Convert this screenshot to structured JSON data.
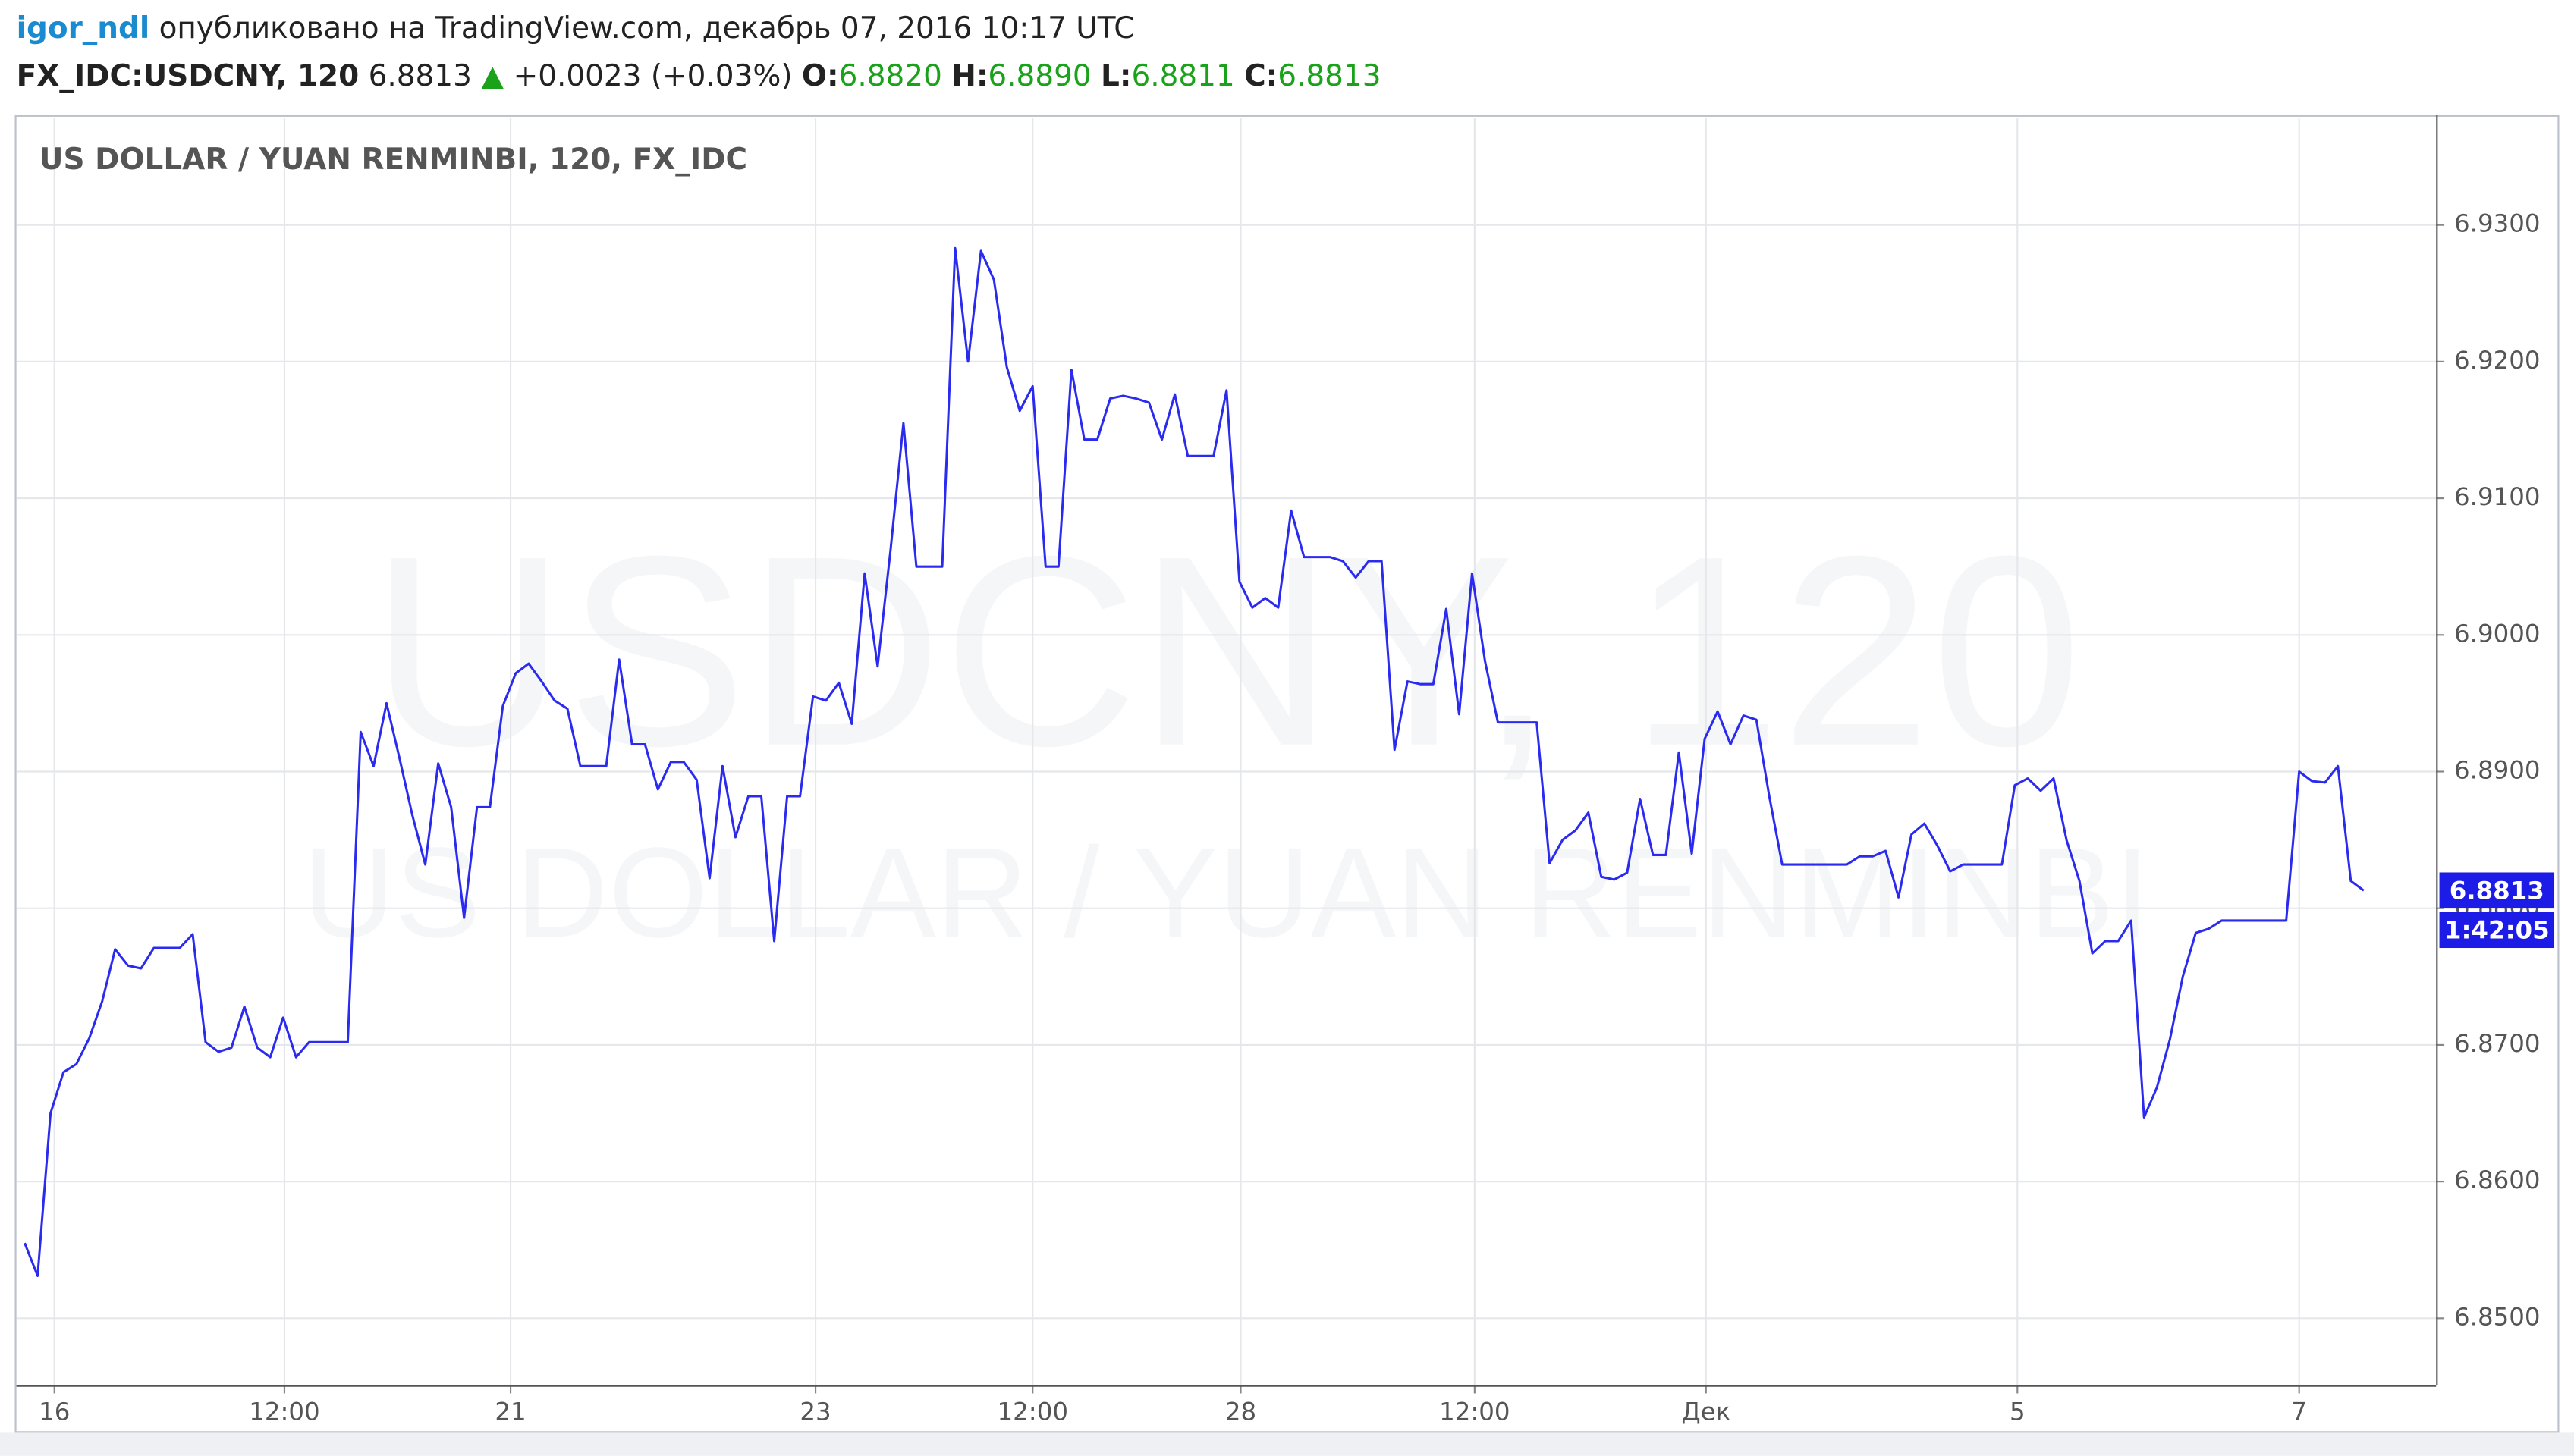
{
  "header": {
    "author": "igor_ndl",
    "published": "опубликовано на TradingView.com, декабрь 07, 2016 10:17 UTC",
    "symbol": "FX_IDC:USDCNY, 120",
    "last": "6.8813",
    "change_arrow": "▲",
    "change": "+0.0023 (+0.03%)",
    "open_label": "O:",
    "open": "6.8820",
    "high_label": "H:",
    "high": "6.8890",
    "low_label": "L:",
    "low": "6.8811",
    "close_label": "C:",
    "close": "6.8813"
  },
  "chart_data": {
    "type": "line",
    "title": "US DOLLAR / YUAN RENMINBI, 120, FX_IDC",
    "watermark": "USDCNY, 120",
    "watermark_subtitle": "US DOLLAR / YUAN RENMINBI",
    "color": "#2b2bf0",
    "grid": true,
    "values": [
      6.8555,
      6.8531,
      6.865,
      6.868,
      6.8686,
      6.8705,
      6.8732,
      6.877,
      6.8758,
      6.8756,
      6.8771,
      6.8771,
      6.8771,
      6.8781,
      6.8702,
      6.8695,
      6.8698,
      6.8728,
      6.8698,
      6.8691,
      6.872,
      6.8691,
      6.8702,
      6.8702,
      6.8702,
      6.8702,
      6.8929,
      6.8904,
      6.895,
      6.891,
      6.8868,
      6.8832,
      6.8906,
      6.8874,
      6.8793,
      6.8874,
      6.8874,
      6.8948,
      6.8972,
      6.8979,
      6.8966,
      6.8952,
      6.8946,
      6.8904,
      6.8904,
      6.8904,
      6.8982,
      6.892,
      6.892,
      6.8887,
      6.8907,
      6.8907,
      6.8894,
      6.8822,
      6.8904,
      6.8852,
      6.8882,
      6.8882,
      6.8776,
      6.8882,
      6.8882,
      6.8955,
      6.8952,
      6.8965,
      6.8935,
      6.9045,
      6.8977,
      6.9062,
      6.9155,
      6.905,
      6.905,
      6.905,
      6.9283,
      6.92,
      6.9281,
      6.926,
      6.9196,
      6.9164,
      6.9182,
      6.905,
      6.905,
      6.9194,
      6.9143,
      6.9143,
      6.9173,
      6.9175,
      6.9173,
      6.917,
      6.9143,
      6.9176,
      6.9131,
      6.9131,
      6.9131,
      6.9179,
      6.9039,
      6.902,
      6.9027,
      6.902,
      6.9091,
      6.9057,
      6.9057,
      6.9057,
      6.9054,
      6.9042,
      6.9054,
      6.9054,
      6.8916,
      6.8966,
      6.8964,
      6.8964,
      6.9019,
      6.8942,
      6.9045,
      6.8981,
      6.8936,
      6.8936,
      6.8936,
      6.8936,
      6.8833,
      6.885,
      6.8857,
      6.887,
      6.8823,
      6.8821,
      6.8826,
      6.888,
      6.8839,
      6.8839,
      6.8914,
      6.884,
      6.8924,
      6.8944,
      6.892,
      6.8941,
      6.8938,
      6.8882,
      6.8832,
      6.8832,
      6.8832,
      6.8832,
      6.8832,
      6.8832,
      6.8838,
      6.8838,
      6.8842,
      6.8808,
      6.8854,
      6.8862,
      6.8846,
      6.8827,
      6.8832,
      6.8832,
      6.8832,
      6.8832,
      6.889,
      6.8895,
      6.8886,
      6.8895,
      6.885,
      6.882,
      6.8767,
      6.8776,
      6.8776,
      6.8791,
      6.8647,
      6.8669,
      6.8704,
      6.875,
      6.8782,
      6.8785,
      6.8791,
      6.8791,
      6.8791,
      6.8791,
      6.8791,
      6.8791,
      6.89,
      6.8893,
      6.8892,
      6.8904,
      6.882,
      6.8813
    ],
    "xlim": [
      -0.64,
      186.6
    ],
    "xticks": [
      {
        "value": 2.3,
        "label": "16"
      },
      {
        "value": 20.1,
        "label": "12:00"
      },
      {
        "value": 37.6,
        "label": "21"
      },
      {
        "value": 61.2,
        "label": "23"
      },
      {
        "value": 78.0,
        "label": "12:00"
      },
      {
        "value": 94.1,
        "label": "28"
      },
      {
        "value": 112.2,
        "label": "12:00"
      },
      {
        "value": 130.1,
        "label": "Дек"
      },
      {
        "value": 154.2,
        "label": "5"
      },
      {
        "value": 176.0,
        "label": "7"
      }
    ],
    "ylim": [
      6.8451,
      6.9378
    ],
    "yticks": [
      {
        "value": 6.85,
        "label": "6.8500"
      },
      {
        "value": 6.86,
        "label": "6.8600"
      },
      {
        "value": 6.87,
        "label": "6.8700"
      },
      {
        "value": 6.88,
        "label": "6.8800"
      },
      {
        "value": 6.89,
        "label": "6.8900"
      },
      {
        "value": 6.9,
        "label": "6.9000"
      },
      {
        "value": 6.91,
        "label": "6.9100"
      },
      {
        "value": 6.92,
        "label": "6.9200"
      },
      {
        "value": 6.93,
        "label": "6.9300"
      }
    ],
    "last_price": {
      "value": 6.8813,
      "label": "6.8813"
    },
    "countdown": "1:42:05"
  }
}
